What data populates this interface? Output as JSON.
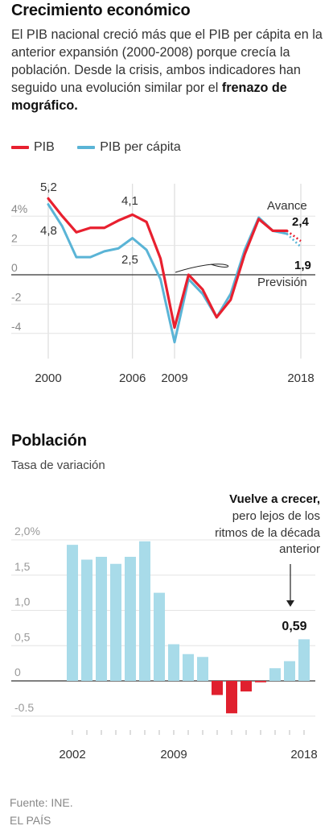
{
  "gdp": {
    "title": "Crecimiento económico",
    "intro_text": "El PIB nacional creció más que el PIB per cápita en la anterior expansión (2000-2008) porque crecía la población. Desde la crisis, ambos indicadores han seguido una evolución similar por el ",
    "intro_bold": "frenazo de mográfico.",
    "legend": [
      {
        "label": "PIB",
        "color": "#e8202f"
      },
      {
        "label": "PIB per cápita",
        "color": "#5ab4d6"
      }
    ],
    "labels": {
      "v2000_pib": "5,2",
      "v2000_pc": "4,8",
      "v2006_pib": "4,1",
      "v2006_pc": "2,5",
      "avance": "Avance",
      "avance_value": "2,4",
      "prevision_value": "1,9",
      "prevision": "Previsión"
    },
    "y_tick_labels": [
      "4%",
      "2",
      "0",
      "-2",
      "-4"
    ],
    "x_tick_labels": [
      "2000",
      "2006",
      "2009",
      "2018"
    ]
  },
  "population": {
    "title": "Población",
    "subtitle": "Tasa de variación",
    "annotation_bold": "Vuelve a crecer,",
    "annotation_lines": [
      "pero lejos de los",
      "ritmos de la década",
      "anterior"
    ],
    "last_value_label": "0,59",
    "y_tick_labels": [
      "2,0%",
      "1,5",
      "1,0",
      "0,5",
      "0",
      "-0.5"
    ],
    "x_tick_labels": [
      "2002",
      "2009",
      "2018"
    ],
    "colors": {
      "positive": "#a8dbe9",
      "negative": "#e0202e"
    }
  },
  "chart_data": [
    {
      "type": "line",
      "title": "Crecimiento económico",
      "x": [
        2000,
        2001,
        2002,
        2003,
        2004,
        2005,
        2006,
        2007,
        2008,
        2009,
        2010,
        2011,
        2012,
        2013,
        2014,
        2015,
        2016,
        2017,
        2018
      ],
      "series": [
        {
          "name": "PIB",
          "color": "#e8202f",
          "values": [
            5.2,
            4.0,
            2.9,
            3.2,
            3.2,
            3.7,
            4.1,
            3.6,
            1.1,
            -3.6,
            0.0,
            -1.0,
            -2.9,
            -1.7,
            1.4,
            3.8,
            3.0,
            3.0,
            2.4
          ],
          "forecast_from": 2017,
          "forecast_values": [
            3.0,
            2.3
          ]
        },
        {
          "name": "PIB per cápita",
          "color": "#5ab4d6",
          "values": [
            4.8,
            3.3,
            1.2,
            1.2,
            1.6,
            1.8,
            2.5,
            1.7,
            -0.3,
            -4.6,
            -0.3,
            -1.3,
            -2.9,
            -1.3,
            1.7,
            3.9,
            3.0,
            2.8,
            2.0
          ],
          "forecast_from": 2017,
          "forecast_values": [
            2.8,
            1.9
          ]
        }
      ],
      "ylim": [
        -5,
        5
      ],
      "yticks": [
        4,
        2,
        0,
        -2,
        -4
      ],
      "xticks": [
        2000,
        2006,
        2009,
        2018
      ],
      "annotations": [
        "Avance 2,4",
        "Previsión 1,9"
      ]
    },
    {
      "type": "bar",
      "title": "Población",
      "subtitle": "Tasa de variación",
      "categories": [
        2002,
        2003,
        2004,
        2005,
        2006,
        2007,
        2008,
        2009,
        2010,
        2011,
        2012,
        2013,
        2014,
        2015,
        2016,
        2017,
        2018
      ],
      "values": [
        1.93,
        1.72,
        1.76,
        1.66,
        1.76,
        1.98,
        1.25,
        0.52,
        0.38,
        0.34,
        -0.2,
        -0.46,
        -0.15,
        -0.02,
        0.18,
        0.28,
        0.59
      ],
      "ylim": [
        -0.6,
        2.1
      ],
      "yticks": [
        2.0,
        1.5,
        1.0,
        0.5,
        0,
        -0.5
      ],
      "xticks": [
        2002,
        2009,
        2018
      ]
    }
  ],
  "footer": {
    "source": "Fuente: INE.",
    "publisher": "EL PAÍS"
  }
}
